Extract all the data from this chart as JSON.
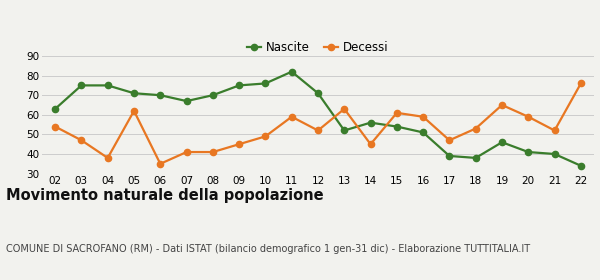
{
  "years": [
    "02",
    "03",
    "04",
    "05",
    "06",
    "07",
    "08",
    "09",
    "10",
    "11",
    "12",
    "13",
    "14",
    "15",
    "16",
    "17",
    "18",
    "19",
    "20",
    "21",
    "22"
  ],
  "nascite": [
    63,
    75,
    75,
    71,
    70,
    67,
    70,
    75,
    76,
    82,
    71,
    52,
    56,
    54,
    51,
    39,
    38,
    46,
    41,
    40,
    34
  ],
  "decessi": [
    54,
    47,
    38,
    62,
    35,
    41,
    41,
    45,
    49,
    59,
    52,
    63,
    45,
    61,
    59,
    47,
    53,
    65,
    59,
    52,
    76
  ],
  "nascite_color": "#3a7d2c",
  "decessi_color": "#e87722",
  "bg_color": "#f2f2ee",
  "grid_color": "#cccccc",
  "ylim": [
    30,
    90
  ],
  "yticks": [
    30,
    40,
    50,
    60,
    70,
    80,
    90
  ],
  "title": "Movimento naturale della popolazione",
  "subtitle": "COMUNE DI SACROFANO (RM) - Dati ISTAT (bilancio demografico 1 gen-31 dic) - Elaborazione TUTTITALIA.IT",
  "legend_nascite": "Nascite",
  "legend_decessi": "Decessi",
  "title_fontsize": 10.5,
  "subtitle_fontsize": 7.0,
  "tick_fontsize": 7.5,
  "legend_fontsize": 8.5,
  "marker_size": 4.5,
  "line_width": 1.6
}
